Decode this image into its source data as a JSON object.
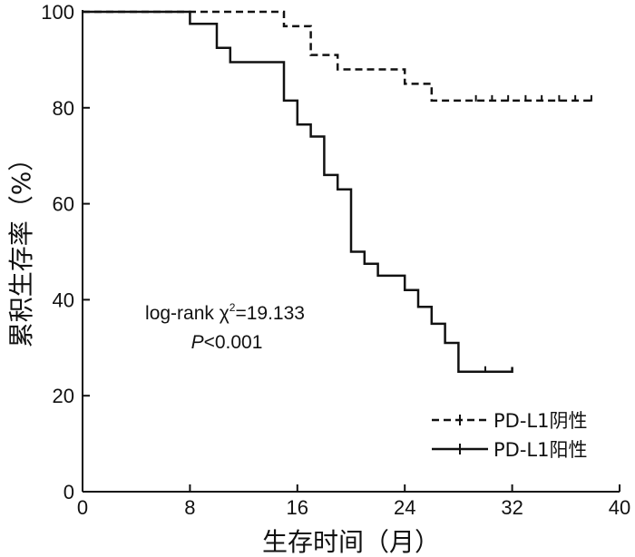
{
  "chart_data": {
    "type": "line",
    "step": true,
    "title": "",
    "xlabel": "生存时间（月）",
    "ylabel": "累积生存率（%）",
    "xlim": [
      0,
      40
    ],
    "ylim": [
      0,
      100
    ],
    "xticks": [
      0,
      8,
      16,
      24,
      32,
      40
    ],
    "yticks": [
      0,
      20,
      40,
      60,
      80,
      100
    ],
    "grid": false,
    "legend_position": "bottom-right",
    "annotation": {
      "stat_prefix": "log-rank χ",
      "stat_sup": "2",
      "stat_value": "=19.133",
      "p_symbol": "P",
      "p_value": "<0.001"
    },
    "series": [
      {
        "name": "PD-L1阴性",
        "style": "dashed",
        "color": "#111111",
        "points": [
          [
            0,
            100
          ],
          [
            15,
            100
          ],
          [
            15,
            97
          ],
          [
            17,
            97
          ],
          [
            17,
            91
          ],
          [
            19,
            91
          ],
          [
            19,
            88
          ],
          [
            24,
            88
          ],
          [
            24,
            85
          ],
          [
            26,
            85
          ],
          [
            26,
            81.5
          ],
          [
            38,
            81.5
          ]
        ],
        "censored": [
          [
            29.3,
            81.5
          ],
          [
            30.5,
            81.5
          ],
          [
            31.7,
            81.5
          ],
          [
            33,
            81.5
          ],
          [
            34.2,
            81.5
          ],
          [
            35.5,
            81.5
          ],
          [
            36.7,
            81.5
          ],
          [
            37.9,
            81.5
          ]
        ]
      },
      {
        "name": "PD-L1阳性",
        "style": "solid",
        "color": "#111111",
        "points": [
          [
            0,
            100
          ],
          [
            8,
            100
          ],
          [
            8,
            97.5
          ],
          [
            10,
            97.5
          ],
          [
            10,
            92.5
          ],
          [
            11,
            92.5
          ],
          [
            11,
            89.5
          ],
          [
            15,
            89.5
          ],
          [
            15,
            81.5
          ],
          [
            16,
            81.5
          ],
          [
            16,
            76.5
          ],
          [
            17,
            76.5
          ],
          [
            17,
            74
          ],
          [
            18,
            74
          ],
          [
            18,
            66
          ],
          [
            19,
            66
          ],
          [
            19,
            63
          ],
          [
            20,
            63
          ],
          [
            20,
            50
          ],
          [
            21,
            50
          ],
          [
            21,
            47.5
          ],
          [
            22,
            47.5
          ],
          [
            22,
            45
          ],
          [
            24,
            45
          ],
          [
            24,
            42
          ],
          [
            25,
            42
          ],
          [
            25,
            38.5
          ],
          [
            26,
            38.5
          ],
          [
            26,
            35
          ],
          [
            27,
            35
          ],
          [
            27,
            31
          ],
          [
            28,
            31
          ],
          [
            28,
            25
          ],
          [
            32,
            25
          ],
          [
            32,
            26
          ]
        ],
        "censored": [
          [
            30,
            25
          ]
        ]
      }
    ]
  }
}
